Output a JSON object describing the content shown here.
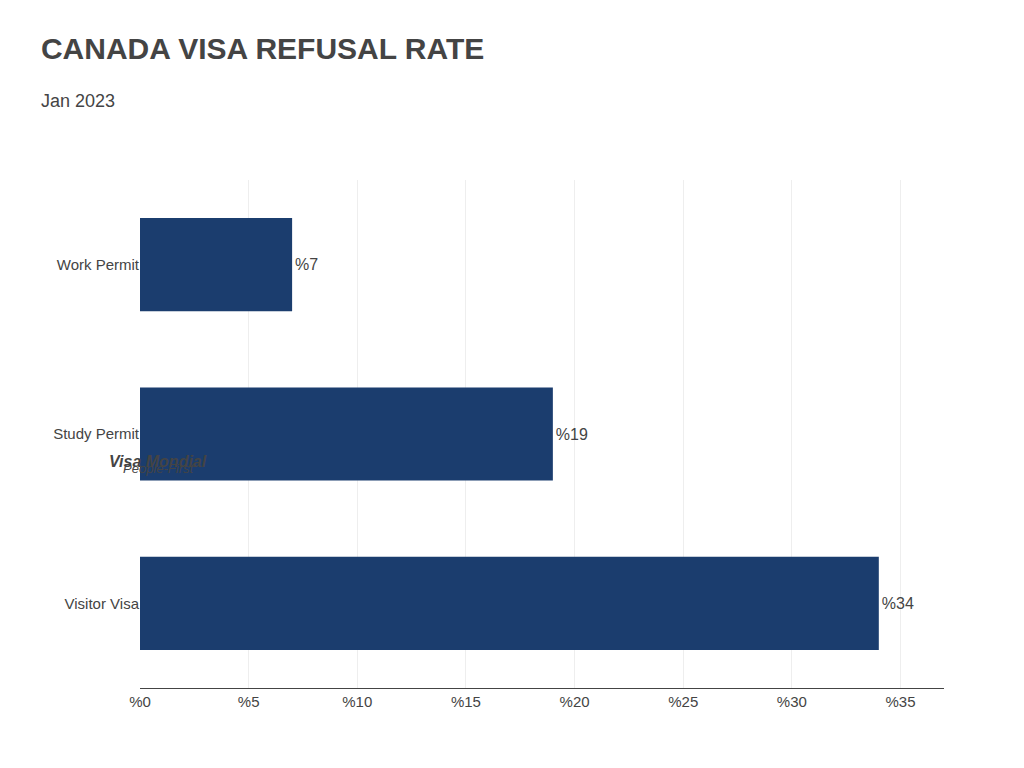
{
  "chart_data": {
    "type": "bar",
    "orientation": "horizontal",
    "title": "CANADA VISA REFUSAL RATE",
    "subtitle": "Jan 2023",
    "categories": [
      "Visitor Visa",
      "Study Permit",
      "Work Permit"
    ],
    "values": [
      34,
      19,
      7
    ],
    "value_labels": [
      "%34",
      "%19",
      "%7"
    ],
    "data_labels": true,
    "color": "#1b3d6e",
    "xlim": [
      0,
      37
    ],
    "xticks": [
      {
        "value": 0,
        "label": "%0"
      },
      {
        "value": 5,
        "label": "%5"
      },
      {
        "value": 10,
        "label": "%10"
      },
      {
        "value": 15,
        "label": "%15"
      },
      {
        "value": 20,
        "label": "%20"
      },
      {
        "value": 25,
        "label": "%25"
      },
      {
        "value": 30,
        "label": "%30"
      },
      {
        "value": 35,
        "label": "%35"
      }
    ],
    "grid": true,
    "annotations": [
      "Visa Mondial",
      "People-First"
    ]
  }
}
